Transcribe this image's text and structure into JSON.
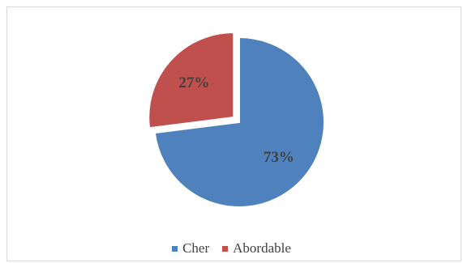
{
  "chart_data": {
    "type": "pie",
    "slices": [
      {
        "name": "Cher",
        "value": 73,
        "label": "73%",
        "color": "#4f81bd",
        "exploded": false
      },
      {
        "name": "Abordable",
        "value": 27,
        "label": "27%",
        "color": "#c0504d",
        "exploded": true
      }
    ],
    "title": "",
    "legend_position": "bottom"
  }
}
